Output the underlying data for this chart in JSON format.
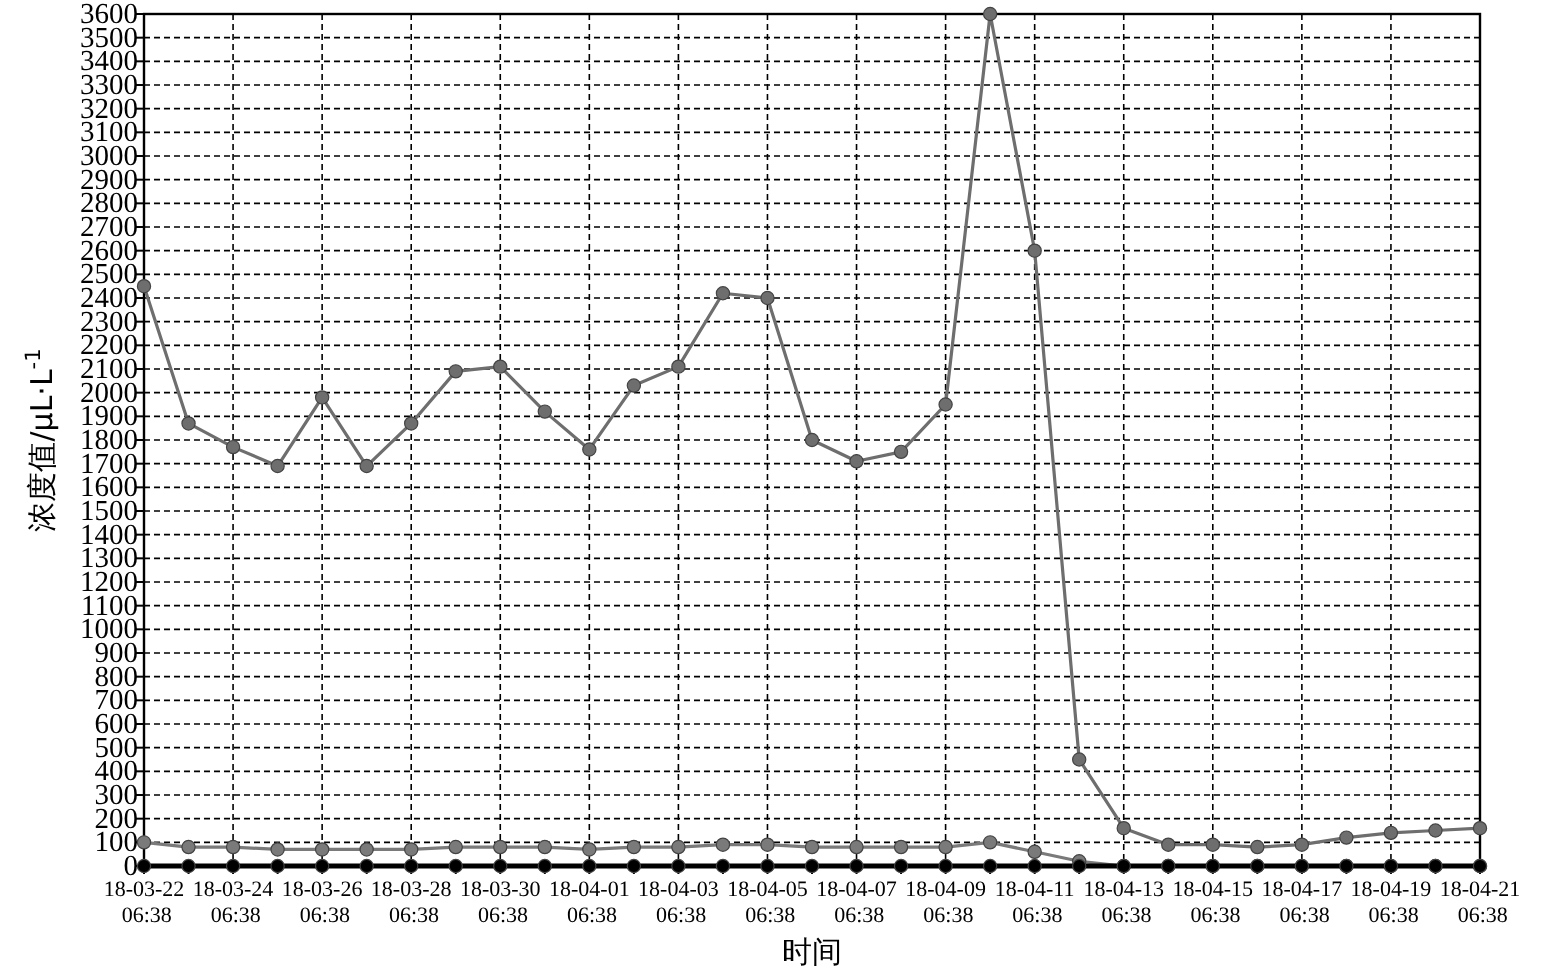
{
  "chart_data": {
    "type": "line",
    "xlabel": "时间",
    "ylabel": "浓度值/μL·L$^{-1}$",
    "categories": [
      "18-03-22 06:38",
      null,
      "18-03-24 06:38",
      null,
      "18-03-26 06:38",
      null,
      "18-03-28 06:38",
      null,
      "18-03-30 06:38",
      null,
      "18-04-01 06:38",
      null,
      "18-04-03 06:38",
      null,
      "18-04-05 06:38",
      null,
      "18-04-07 06:38",
      null,
      "18-04-09 06:38",
      null,
      "18-04-11 06:38",
      null,
      "18-04-13 06:38",
      null,
      "18-04-15 06:38",
      null,
      "18-04-17 06:38",
      null,
      "18-04-19 06:38",
      null,
      "18-04-21 06:38"
    ],
    "series": [
      {
        "color": "#6e6e6e",
        "values": [
          2450,
          1870,
          1770,
          1690,
          1980,
          1690,
          1870,
          2090,
          2110,
          1920,
          1760,
          2030,
          2110,
          2420,
          2400,
          1800,
          1710,
          1750,
          1950,
          3600,
          2600,
          450,
          160,
          90,
          90,
          80,
          90,
          120,
          140,
          150,
          160
        ]
      },
      {
        "color": "#7a7a7a",
        "values": [
          100,
          80,
          80,
          70,
          70,
          70,
          70,
          80,
          80,
          80,
          70,
          80,
          80,
          90,
          90,
          80,
          80,
          80,
          80,
          100,
          60,
          20,
          0,
          0,
          0,
          0,
          0,
          0,
          0,
          0,
          0
        ]
      },
      {
        "color": "#000000",
        "values": [
          0,
          0,
          0,
          0,
          0,
          0,
          0,
          0,
          0,
          0,
          0,
          0,
          0,
          0,
          0,
          0,
          0,
          0,
          0,
          0,
          0,
          0,
          0,
          0,
          0,
          0,
          0,
          0,
          0,
          0,
          0
        ]
      }
    ],
    "ylim": [
      0,
      3600
    ],
    "yticks": [
      0,
      100,
      200,
      300,
      400,
      500,
      600,
      700,
      800,
      900,
      1000,
      1100,
      1200,
      1300,
      1400,
      1500,
      1600,
      1700,
      1800,
      1900,
      2000,
      2100,
      2200,
      2300,
      2400,
      2500,
      2600,
      2700,
      2800,
      2900,
      3000,
      3100,
      3200,
      3300,
      3400,
      3500,
      3600
    ],
    "grid": true,
    "marker": "circle"
  }
}
